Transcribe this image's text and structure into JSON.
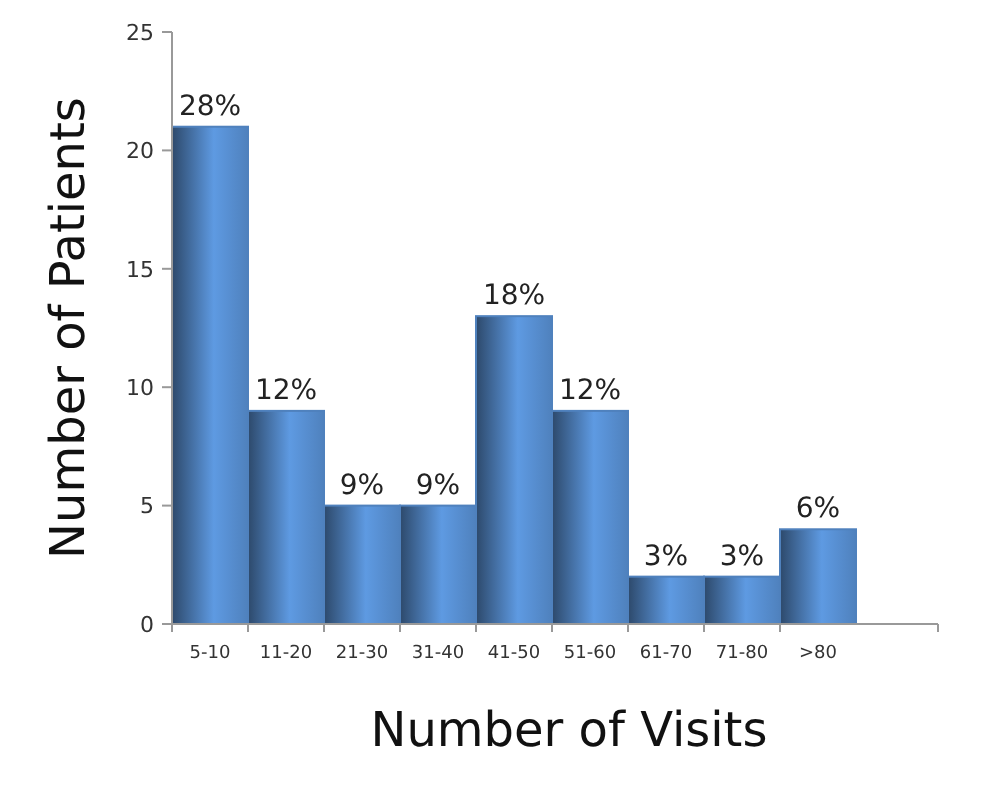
{
  "chart_data": {
    "type": "bar",
    "xlabel": "Number of Visits",
    "ylabel": "Number of Patients",
    "categories": [
      "5-10",
      "11-20",
      "21-30",
      "31-40",
      "41-50",
      "51-60",
      "61-70",
      "71-80",
      ">80"
    ],
    "values": [
      21,
      9,
      5,
      5,
      13,
      9,
      2,
      2,
      4
    ],
    "annotations": [
      {
        "text": "28%",
        "x": "5-10",
        "y": 21
      },
      {
        "text": "12%",
        "x": "11-20",
        "y": 9
      },
      {
        "text": "9%",
        "x": "21-30",
        "y": 5
      },
      {
        "text": "9%",
        "x": "31-40",
        "y": 5
      },
      {
        "text": "18%",
        "x": "41-50",
        "y": 13
      },
      {
        "text": "12%",
        "x": "51-60",
        "y": 9
      },
      {
        "text": "3%",
        "x": "61-70",
        "y": 2
      },
      {
        "text": "3%",
        "x": "71-80",
        "y": 2
      },
      {
        "text": "6%",
        "x": ">80",
        "y": 4
      }
    ],
    "color": "#4f81bd",
    "ylim": [
      0,
      25
    ],
    "yticks": [
      0,
      5,
      10,
      15,
      20,
      25
    ],
    "grid": false
  }
}
